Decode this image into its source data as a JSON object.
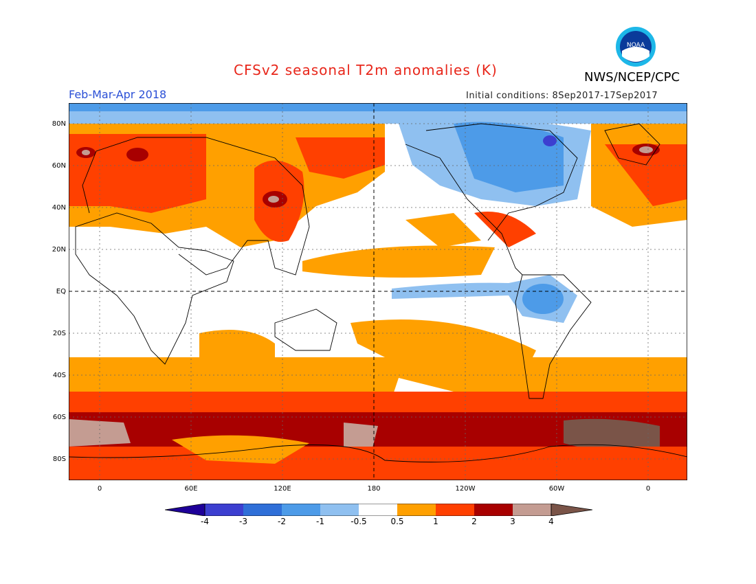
{
  "header": {
    "title": "CFSv2 seasonal T2m anomalies (K)",
    "agency": "NWS/NCEP/CPC",
    "period": "Feb-Mar-Apr 2018",
    "initial_conditions": "Initial conditions: 8Sep2017-17Sep2017",
    "logo_text": "NOAA"
  },
  "axes": {
    "lat_labels": [
      "80N",
      "60N",
      "40N",
      "20N",
      "EQ",
      "20S",
      "40S",
      "60S",
      "80S"
    ],
    "lon_labels": [
      "0",
      "60E",
      "120E",
      "180",
      "120W",
      "60W",
      "0"
    ]
  },
  "colorbar": {
    "labels": [
      "-4",
      "-3",
      "-2",
      "-1",
      "-0.5",
      "0.5",
      "1",
      "2",
      "3",
      "4"
    ],
    "colors": [
      "#1e0099",
      "#3c3fd0",
      "#2f6fd8",
      "#4d9be8",
      "#8fc0f0",
      "#ffffff",
      "#ffa000",
      "#ff4000",
      "#a80000",
      "#c49c92",
      "#7a5448"
    ]
  }
}
